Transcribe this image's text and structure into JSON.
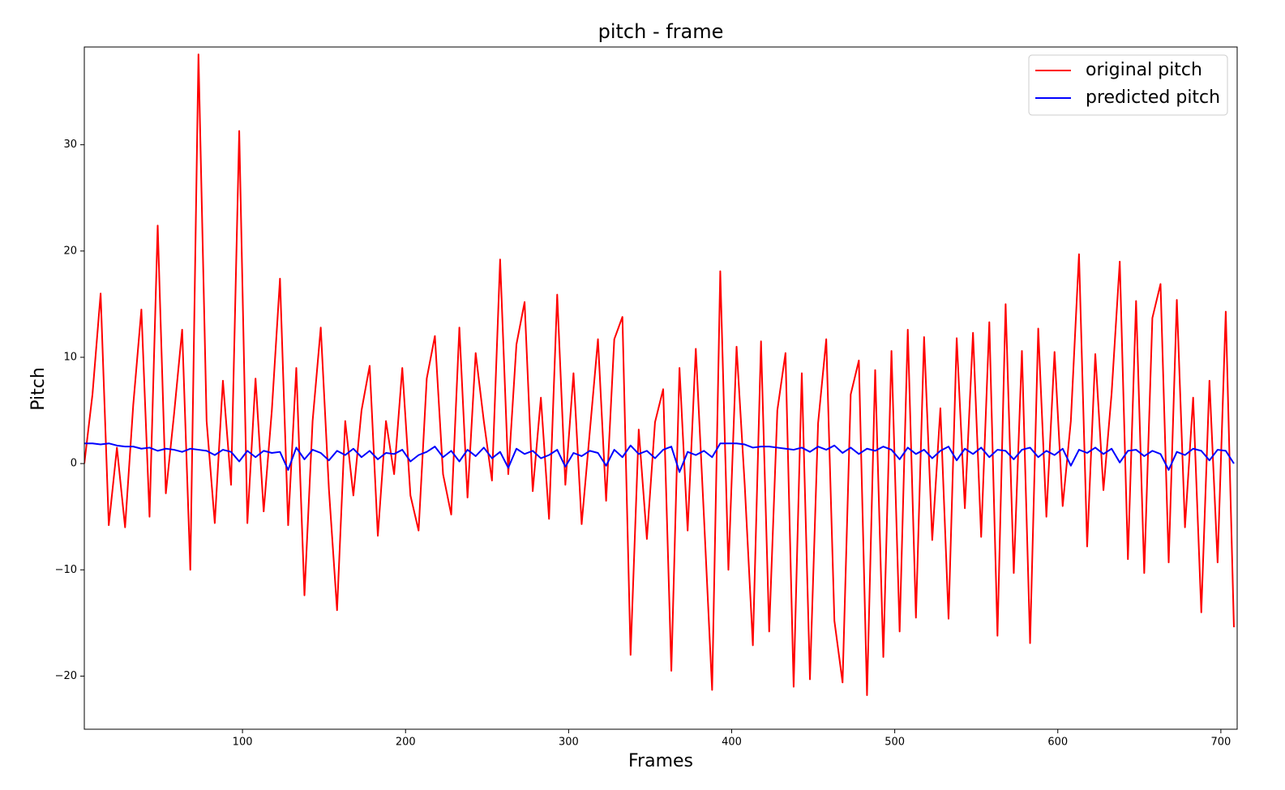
{
  "chart_data": {
    "type": "line",
    "title": "pitch - frame",
    "x_label": "Frames",
    "y_label": "Pitch",
    "x": [
      3,
      8,
      13,
      18,
      23,
      28,
      33,
      38,
      43,
      48,
      53,
      58,
      63,
      68,
      73,
      78,
      83,
      88,
      93,
      98,
      103,
      108,
      113,
      118,
      123,
      128,
      133,
      138,
      143,
      148,
      153,
      158,
      163,
      168,
      173,
      178,
      183,
      188,
      193,
      198,
      203,
      208,
      213,
      218,
      223,
      228,
      233,
      238,
      243,
      248,
      253,
      258,
      263,
      268,
      273,
      278,
      283,
      288,
      293,
      298,
      303,
      308,
      313,
      318,
      323,
      328,
      333,
      338,
      343,
      348,
      353,
      358,
      363,
      368,
      373,
      378,
      383,
      388,
      393,
      398,
      403,
      408,
      413,
      418,
      423,
      428,
      433,
      438,
      443,
      448,
      453,
      458,
      463,
      468,
      473,
      478,
      483,
      488,
      493,
      498,
      503,
      508,
      513,
      518,
      523,
      528,
      533,
      538,
      543,
      548,
      553,
      558,
      563,
      568,
      573,
      578,
      583,
      588,
      593,
      598,
      603,
      608,
      613,
      618,
      623,
      628,
      633,
      638,
      643,
      648,
      653,
      658,
      663,
      668,
      673,
      678,
      683,
      688,
      693,
      698,
      703,
      708
    ],
    "series": [
      {
        "name": "original pitch",
        "color": "#ff0000",
        "values": [
          0,
          6.5,
          16,
          -5.8,
          1.5,
          -6,
          5.5,
          14.5,
          -5,
          22.4,
          -2.8,
          4.6,
          12.6,
          -10,
          38.5,
          4,
          -5.6,
          7.8,
          -2,
          31.3,
          -5.6,
          8,
          -4.5,
          5,
          17.4,
          -5.8,
          9,
          -12.4,
          4,
          12.8,
          -2.4,
          -13.8,
          4,
          -3,
          5,
          9.2,
          -6.8,
          4,
          -1,
          9,
          -3,
          -6.3,
          8,
          12,
          -1,
          -4.8,
          12.8,
          -3.2,
          10.4,
          4,
          -1.6,
          19.2,
          -1,
          11.2,
          15.2,
          -2.6,
          6.2,
          -5.2,
          15.9,
          -2,
          8.5,
          -5.7,
          3,
          11.7,
          -3.5,
          11.7,
          13.8,
          -18,
          3.2,
          -7.1,
          3.9,
          7,
          -19.5,
          9,
          -6.3,
          10.8,
          -5,
          -21.3,
          18.1,
          -10,
          11,
          -2,
          -17.1,
          11.5,
          -15.8,
          5,
          10.4,
          -21,
          8.5,
          -20.3,
          3.8,
          11.7,
          -14.8,
          -20.6,
          6.5,
          9.7,
          -21.8,
          8.8,
          -18.2,
          10.6,
          -15.8,
          12.6,
          -14.5,
          11.9,
          -7.2,
          5.2,
          -14.6,
          11.8,
          -4.2,
          12.3,
          -6.9,
          13.3,
          -16.2,
          15,
          -10.3,
          10.6,
          -16.9,
          12.7,
          -5,
          10.5,
          -4,
          4,
          19.7,
          -7.8,
          10.3,
          -2.5,
          6.6,
          19,
          -9,
          15.3,
          -10.3,
          13.7,
          16.9,
          -9.3,
          15.4,
          -6,
          6.2,
          -14,
          7.8,
          -9.3,
          14.3,
          -15.4
        ]
      },
      {
        "name": "predicted pitch",
        "color": "#0000ff",
        "values": [
          1.9,
          1.9,
          1.8,
          1.9,
          1.7,
          1.6,
          1.6,
          1.4,
          1.5,
          1.2,
          1.4,
          1.3,
          1.1,
          1.4,
          1.3,
          1.2,
          0.8,
          1.3,
          1.1,
          0.2,
          1.2,
          0.6,
          1.2,
          1,
          1.1,
          -0.6,
          1.5,
          0.4,
          1.3,
          1,
          0.3,
          1.2,
          0.8,
          1.4,
          0.6,
          1.2,
          0.4,
          1,
          0.9,
          1.3,
          0.2,
          0.8,
          1.1,
          1.6,
          0.6,
          1.2,
          0.2,
          1.3,
          0.7,
          1.5,
          0.5,
          1.1,
          -0.4,
          1.4,
          0.9,
          1.2,
          0.5,
          0.8,
          1.3,
          -0.3,
          1,
          0.7,
          1.2,
          1,
          -0.2,
          1.3,
          0.6,
          1.7,
          0.9,
          1.2,
          0.5,
          1.3,
          1.6,
          -0.8,
          1.1,
          0.8,
          1.2,
          0.6,
          1.9,
          1.9,
          1.9,
          1.8,
          1.5,
          1.6,
          1.6,
          1.5,
          1.4,
          1.3,
          1.5,
          1.1,
          1.6,
          1.3,
          1.7,
          1,
          1.5,
          0.9,
          1.4,
          1.2,
          1.6,
          1.3,
          0.4,
          1.5,
          0.9,
          1.3,
          0.5,
          1.2,
          1.6,
          0.3,
          1.4,
          0.9,
          1.5,
          0.6,
          1.3,
          1.2,
          0.4,
          1.3,
          1.5,
          0.6,
          1.2,
          0.8,
          1.4,
          -0.2,
          1.3,
          1,
          1.5,
          0.9,
          1.4,
          0.1,
          1.2,
          1.3,
          0.7,
          1.2,
          0.9,
          -0.6,
          1.1,
          0.8,
          1.4,
          1.2,
          0.3,
          1.3,
          1.2,
          0
        ]
      }
    ],
    "xlim": [
      3,
      710
    ],
    "ylim": [
      -25,
      39.2
    ],
    "xticks": [
      100,
      200,
      300,
      400,
      500,
      600,
      700
    ],
    "yticks": [
      {
        "value": -20,
        "label": "−20"
      },
      {
        "value": -10,
        "label": "−10"
      },
      0,
      10,
      20,
      30
    ],
    "legend": "upper right"
  }
}
